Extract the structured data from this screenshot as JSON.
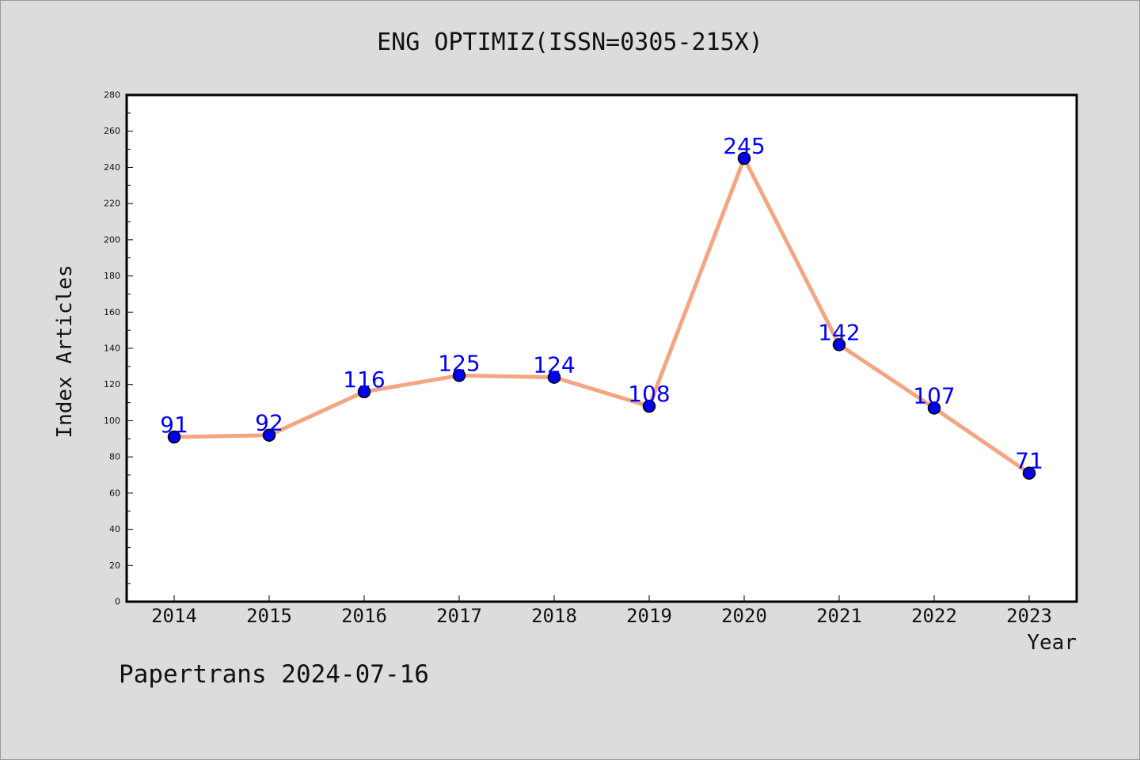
{
  "chart_data": {
    "type": "line",
    "title": "ENG OPTIMIZ(ISSN=0305-215X)",
    "xlabel": "Year",
    "ylabel": "Index Articles",
    "categories": [
      "2014",
      "2015",
      "2016",
      "2017",
      "2018",
      "2019",
      "2020",
      "2021",
      "2022",
      "2023"
    ],
    "series": [
      {
        "values": [
          91,
          92,
          116,
          125,
          124,
          108,
          245,
          142,
          107,
          71
        ]
      }
    ],
    "ylim": [
      0,
      280
    ],
    "yticks": [
      "0",
      "20",
      "40",
      "60",
      "80",
      "100",
      "120",
      "140",
      "160",
      "180",
      "200",
      "220",
      "240",
      "260",
      "280"
    ],
    "grid": false,
    "legend": "none",
    "colors": {
      "line": "#f4a582",
      "marker": "#0000ee",
      "data_label": "#0000ff",
      "background": "#dcdcdc",
      "plot_background": "#ffffff"
    }
  },
  "footer": {
    "text": "Papertrans 2024-07-16"
  }
}
